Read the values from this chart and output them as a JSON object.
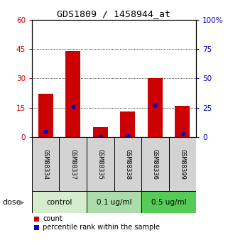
{
  "title": "GDS1809 / 1458944_at",
  "samples": [
    "GSM88334",
    "GSM88337",
    "GSM88335",
    "GSM88338",
    "GSM88336",
    "GSM88399"
  ],
  "red_values": [
    22,
    44,
    5,
    13,
    30,
    16
  ],
  "blue_values": [
    5,
    26,
    1,
    2,
    27,
    3
  ],
  "dose_groups": [
    {
      "label": "control",
      "cols": [
        0,
        1
      ],
      "color": "#d4edcc"
    },
    {
      "label": "0.1 ug/ml",
      "cols": [
        2,
        3
      ],
      "color": "#aaddaa"
    },
    {
      "label": "0.5 ug/ml",
      "cols": [
        4,
        5
      ],
      "color": "#55cc55"
    }
  ],
  "left_ylim": [
    0,
    60
  ],
  "left_yticks": [
    0,
    15,
    30,
    45,
    60
  ],
  "right_ylim": [
    0,
    100
  ],
  "right_yticks": [
    0,
    25,
    50,
    75,
    100
  ],
  "right_yticklabels": [
    "0",
    "25",
    "50",
    "75",
    "100%"
  ],
  "left_color": "#cc0000",
  "right_color": "#0000cc",
  "bar_color": "#cc0000",
  "dot_color": "#0000cc",
  "bg_color": "#ffffff",
  "plot_bg": "#ffffff",
  "grid_color": "#000000",
  "dose_label": "dose",
  "legend_count": "count",
  "legend_pct": "percentile rank within the sample",
  "sample_box_color": "#d3d3d3"
}
